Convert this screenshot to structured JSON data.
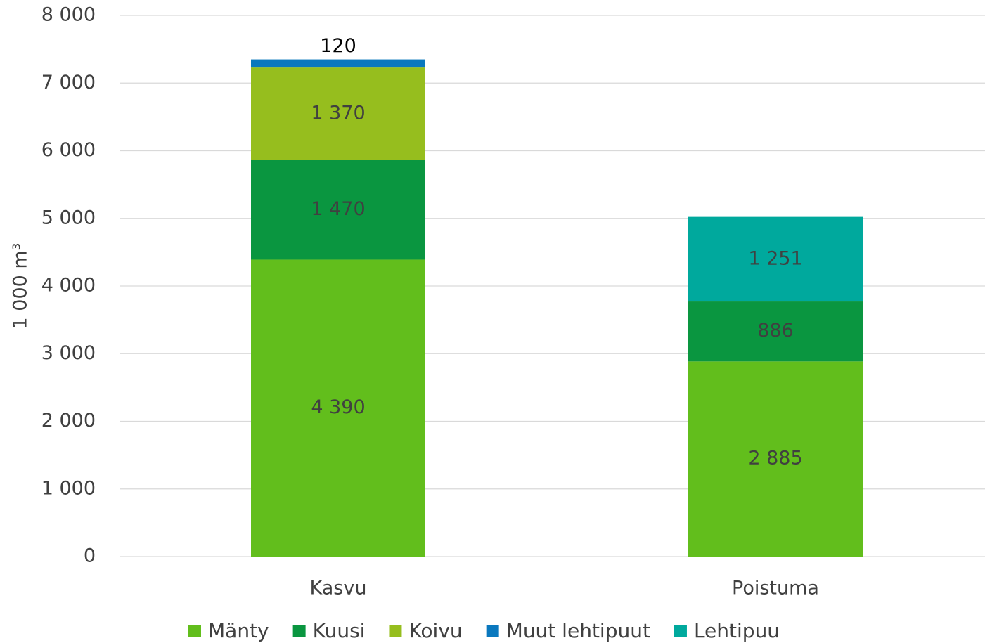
{
  "chart_data": {
    "type": "stacked_bar",
    "y_label": "1 000 m³",
    "categories": [
      "Kasvu",
      "Poistuma"
    ],
    "series": [
      {
        "name": "Mänty",
        "color": "#62be1c",
        "values": [
          4390,
          2885
        ],
        "value_labels": [
          "4 390",
          "2 885"
        ]
      },
      {
        "name": "Kuusi",
        "color": "#0a9640",
        "values": [
          1470,
          886
        ],
        "value_labels": [
          "1 470",
          "886"
        ]
      },
      {
        "name": "Koivu",
        "color": "#96be1e",
        "values": [
          1370,
          null
        ],
        "value_labels": [
          "1 370",
          null
        ]
      },
      {
        "name": "Muut lehtipuut",
        "color": "#0a78be",
        "values": [
          120,
          null
        ],
        "value_labels": [
          "120",
          null
        ]
      },
      {
        "name": "Lehtipuu",
        "color": "#00a99d",
        "values": [
          null,
          1251
        ],
        "value_labels": [
          null,
          "1 251"
        ]
      }
    ],
    "ylim": [
      0,
      8000
    ],
    "yticks": [
      0,
      {
        "value": 1000,
        "label": "1 000"
      },
      {
        "value": 2000,
        "label": "2 000"
      },
      {
        "value": 3000,
        "label": "3 000"
      },
      {
        "value": 4000,
        "label": "4 000"
      },
      {
        "value": 5000,
        "label": "5 000"
      },
      {
        "value": 6000,
        "label": "6 000"
      },
      {
        "value": 7000,
        "label": "7 000"
      },
      {
        "value": 8000,
        "label": "8 000"
      }
    ],
    "grid": true,
    "legend": "bottom"
  }
}
